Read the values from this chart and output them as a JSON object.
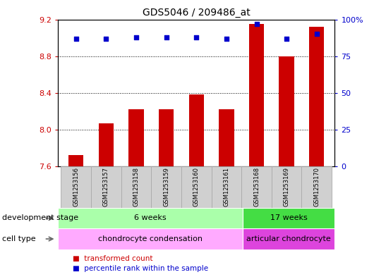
{
  "title": "GDS5046 / 209486_at",
  "samples": [
    "GSM1253156",
    "GSM1253157",
    "GSM1253158",
    "GSM1253159",
    "GSM1253160",
    "GSM1253161",
    "GSM1253168",
    "GSM1253169",
    "GSM1253170"
  ],
  "bar_values": [
    7.72,
    8.07,
    8.22,
    8.22,
    8.38,
    8.22,
    9.15,
    8.8,
    9.12
  ],
  "percentile_values": [
    87,
    87,
    88,
    88,
    88,
    87,
    97,
    87,
    90
  ],
  "ylim_left": [
    7.6,
    9.2
  ],
  "ylim_right": [
    0,
    100
  ],
  "yticks_left": [
    7.6,
    8.0,
    8.4,
    8.8,
    9.2
  ],
  "yticks_right": [
    0,
    25,
    50,
    75,
    100
  ],
  "bar_color": "#cc0000",
  "dot_color": "#0000cc",
  "bar_width": 0.5,
  "dev_stage_groups": [
    {
      "label": "6 weeks",
      "start": 0,
      "end": 5,
      "color": "#aaffaa"
    },
    {
      "label": "17 weeks",
      "start": 6,
      "end": 8,
      "color": "#44dd44"
    }
  ],
  "cell_type_groups": [
    {
      "label": "chondrocyte condensation",
      "start": 0,
      "end": 5,
      "color": "#ffaaff"
    },
    {
      "label": "articular chondrocyte",
      "start": 6,
      "end": 8,
      "color": "#dd44dd"
    }
  ],
  "dev_stage_label": "development stage",
  "cell_type_label": "cell type",
  "legend_bar_label": "transformed count",
  "legend_dot_label": "percentile rank within the sample",
  "right_axis_color": "#0000cc",
  "left_axis_color": "#cc0000",
  "label_box_color": "#d0d0d0",
  "label_box_edge": "#aaaaaa"
}
